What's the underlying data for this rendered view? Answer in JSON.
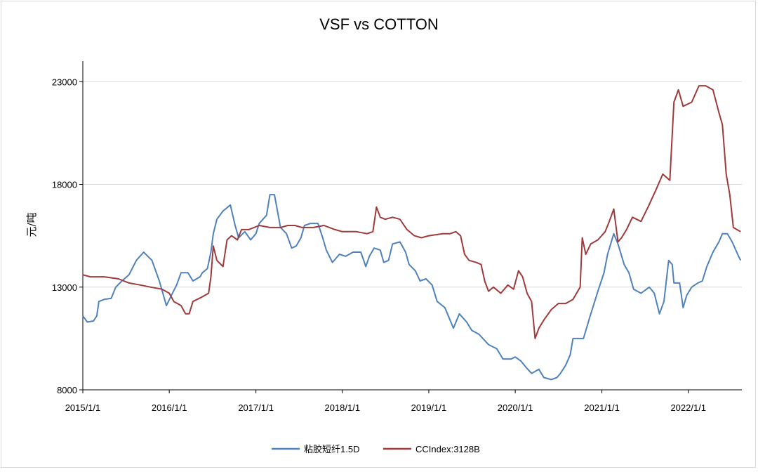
{
  "chart_data": {
    "type": "line",
    "title": "VSF vs COTTON",
    "xlabel": "",
    "ylabel": "元/吨",
    "xlim": [
      "2015-01-01",
      "2022-08-15"
    ],
    "ylim": [
      8000,
      24000
    ],
    "y_ticks": [
      8000,
      13000,
      18000,
      23000
    ],
    "x_tick_labels": [
      "2015/1/1",
      "2016/1/1",
      "2017/1/1",
      "2018/1/1",
      "2019/1/1",
      "2020/1/1",
      "2021/1/1",
      "2022/1/1"
    ],
    "grid": "horizontal",
    "legend_position": "bottom",
    "series": [
      {
        "name": "粘胶短纤1.5D",
        "color": "#4f81bd",
        "points": [
          [
            "2015-01-01",
            11600
          ],
          [
            "2015-01-20",
            11300
          ],
          [
            "2015-02-15",
            11350
          ],
          [
            "2015-03-01",
            11600
          ],
          [
            "2015-03-10",
            12300
          ],
          [
            "2015-04-01",
            12400
          ],
          [
            "2015-05-01",
            12450
          ],
          [
            "2015-05-20",
            13000
          ],
          [
            "2015-06-15",
            13300
          ],
          [
            "2015-07-15",
            13600
          ],
          [
            "2015-08-15",
            14300
          ],
          [
            "2015-09-15",
            14700
          ],
          [
            "2015-10-20",
            14300
          ],
          [
            "2015-11-20",
            13300
          ],
          [
            "2015-12-20",
            12100
          ],
          [
            "2016-01-10",
            12600
          ],
          [
            "2016-02-01",
            13100
          ],
          [
            "2016-02-20",
            13700
          ],
          [
            "2016-03-20",
            13700
          ],
          [
            "2016-04-10",
            13300
          ],
          [
            "2016-05-10",
            13500
          ],
          [
            "2016-05-20",
            13700
          ],
          [
            "2016-06-10",
            13900
          ],
          [
            "2016-06-25",
            14700
          ],
          [
            "2016-07-05",
            15600
          ],
          [
            "2016-07-20",
            16300
          ],
          [
            "2016-08-15",
            16700
          ],
          [
            "2016-09-15",
            17000
          ],
          [
            "2016-10-05",
            16000
          ],
          [
            "2016-10-20",
            15400
          ],
          [
            "2016-11-15",
            15700
          ],
          [
            "2016-12-10",
            15300
          ],
          [
            "2017-01-01",
            15600
          ],
          [
            "2017-01-15",
            16100
          ],
          [
            "2017-02-15",
            16500
          ],
          [
            "2017-03-01",
            17500
          ],
          [
            "2017-03-20",
            17500
          ],
          [
            "2017-04-15",
            15900
          ],
          [
            "2017-05-10",
            15600
          ],
          [
            "2017-06-01",
            14900
          ],
          [
            "2017-06-20",
            15000
          ],
          [
            "2017-07-10",
            15400
          ],
          [
            "2017-07-25",
            16000
          ],
          [
            "2017-08-20",
            16100
          ],
          [
            "2017-09-20",
            16100
          ],
          [
            "2017-10-10",
            15400
          ],
          [
            "2017-10-25",
            14800
          ],
          [
            "2017-11-20",
            14200
          ],
          [
            "2017-12-20",
            14600
          ],
          [
            "2018-01-15",
            14500
          ],
          [
            "2018-02-15",
            14700
          ],
          [
            "2018-03-20",
            14700
          ],
          [
            "2018-04-10",
            14000
          ],
          [
            "2018-04-25",
            14500
          ],
          [
            "2018-05-15",
            14900
          ],
          [
            "2018-06-10",
            14800
          ],
          [
            "2018-06-25",
            14200
          ],
          [
            "2018-07-15",
            14300
          ],
          [
            "2018-08-01",
            15100
          ],
          [
            "2018-09-01",
            15200
          ],
          [
            "2018-09-25",
            14700
          ],
          [
            "2018-10-10",
            14100
          ],
          [
            "2018-11-05",
            13800
          ],
          [
            "2018-11-25",
            13300
          ],
          [
            "2018-12-20",
            13400
          ],
          [
            "2019-01-15",
            13100
          ],
          [
            "2019-02-05",
            12300
          ],
          [
            "2019-03-10",
            12000
          ],
          [
            "2019-04-15",
            11000
          ],
          [
            "2019-05-10",
            11700
          ],
          [
            "2019-06-10",
            11300
          ],
          [
            "2019-07-01",
            10900
          ],
          [
            "2019-08-01",
            10700
          ],
          [
            "2019-09-10",
            10200
          ],
          [
            "2019-10-15",
            10000
          ],
          [
            "2019-11-10",
            9500
          ],
          [
            "2019-11-25",
            9500
          ],
          [
            "2019-12-15",
            9500
          ],
          [
            "2020-01-01",
            9600
          ],
          [
            "2020-01-25",
            9400
          ],
          [
            "2020-02-15",
            9100
          ],
          [
            "2020-03-10",
            8800
          ],
          [
            "2020-04-10",
            9000
          ],
          [
            "2020-05-01",
            8600
          ],
          [
            "2020-06-01",
            8500
          ],
          [
            "2020-06-25",
            8600
          ],
          [
            "2020-07-10",
            8800
          ],
          [
            "2020-08-01",
            9200
          ],
          [
            "2020-08-20",
            9700
          ],
          [
            "2020-09-01",
            10500
          ],
          [
            "2020-10-15",
            10500
          ],
          [
            "2020-11-10",
            11500
          ],
          [
            "2020-12-15",
            12800
          ],
          [
            "2021-01-10",
            13700
          ],
          [
            "2021-01-25",
            14600
          ],
          [
            "2021-02-20",
            15600
          ],
          [
            "2021-03-10",
            15100
          ],
          [
            "2021-04-05",
            14100
          ],
          [
            "2021-04-25",
            13700
          ],
          [
            "2021-05-15",
            12900
          ],
          [
            "2021-06-15",
            12700
          ],
          [
            "2021-07-20",
            13000
          ],
          [
            "2021-08-10",
            12700
          ],
          [
            "2021-09-01",
            11700
          ],
          [
            "2021-09-20",
            12300
          ],
          [
            "2021-10-10",
            14300
          ],
          [
            "2021-10-25",
            14100
          ],
          [
            "2021-11-01",
            13200
          ],
          [
            "2021-11-25",
            13200
          ],
          [
            "2021-12-10",
            12000
          ],
          [
            "2021-12-25",
            12600
          ],
          [
            "2022-01-15",
            13000
          ],
          [
            "2022-02-10",
            13200
          ],
          [
            "2022-03-01",
            13300
          ],
          [
            "2022-03-20",
            14000
          ],
          [
            "2022-04-15",
            14700
          ],
          [
            "2022-05-10",
            15200
          ],
          [
            "2022-05-25",
            15600
          ],
          [
            "2022-06-15",
            15600
          ],
          [
            "2022-07-05",
            15200
          ],
          [
            "2022-08-01",
            14500
          ],
          [
            "2022-08-10",
            14300
          ]
        ]
      },
      {
        "name": "CCIndex:3128B",
        "color": "#a03a3a",
        "points": [
          [
            "2015-01-01",
            13600
          ],
          [
            "2015-02-01",
            13500
          ],
          [
            "2015-04-01",
            13500
          ],
          [
            "2015-06-01",
            13400
          ],
          [
            "2015-07-15",
            13200
          ],
          [
            "2015-09-01",
            13100
          ],
          [
            "2015-10-15",
            13000
          ],
          [
            "2015-12-01",
            12900
          ],
          [
            "2016-01-01",
            12700
          ],
          [
            "2016-01-20",
            12300
          ],
          [
            "2016-02-20",
            12100
          ],
          [
            "2016-03-10",
            11700
          ],
          [
            "2016-03-25",
            11700
          ],
          [
            "2016-04-10",
            12300
          ],
          [
            "2016-05-15",
            12500
          ],
          [
            "2016-06-15",
            12700
          ],
          [
            "2016-06-25",
            13500
          ],
          [
            "2016-07-05",
            15000
          ],
          [
            "2016-07-20",
            14300
          ],
          [
            "2016-08-15",
            14000
          ],
          [
            "2016-09-01",
            15300
          ],
          [
            "2016-09-20",
            15500
          ],
          [
            "2016-10-15",
            15300
          ],
          [
            "2016-11-01",
            15800
          ],
          [
            "2016-12-01",
            15800
          ],
          [
            "2017-01-15",
            16000
          ],
          [
            "2017-03-01",
            15900
          ],
          [
            "2017-04-15",
            15900
          ],
          [
            "2017-05-15",
            16000
          ],
          [
            "2017-06-15",
            16000
          ],
          [
            "2017-07-15",
            15900
          ],
          [
            "2017-09-01",
            15900
          ],
          [
            "2017-10-15",
            16000
          ],
          [
            "2017-12-01",
            15800
          ],
          [
            "2018-01-01",
            15700
          ],
          [
            "2018-03-01",
            15700
          ],
          [
            "2018-04-15",
            15600
          ],
          [
            "2018-05-10",
            15700
          ],
          [
            "2018-05-25",
            16900
          ],
          [
            "2018-06-10",
            16400
          ],
          [
            "2018-07-01",
            16300
          ],
          [
            "2018-08-01",
            16400
          ],
          [
            "2018-09-01",
            16300
          ],
          [
            "2018-10-01",
            15800
          ],
          [
            "2018-11-01",
            15500
          ],
          [
            "2018-12-01",
            15400
          ],
          [
            "2019-01-01",
            15500
          ],
          [
            "2019-03-01",
            15600
          ],
          [
            "2019-04-01",
            15600
          ],
          [
            "2019-04-25",
            15700
          ],
          [
            "2019-05-15",
            15500
          ],
          [
            "2019-06-01",
            14600
          ],
          [
            "2019-06-20",
            14300
          ],
          [
            "2019-07-20",
            14200
          ],
          [
            "2019-08-10",
            14100
          ],
          [
            "2019-08-25",
            13300
          ],
          [
            "2019-09-10",
            12800
          ],
          [
            "2019-10-01",
            13000
          ],
          [
            "2019-11-01",
            12700
          ],
          [
            "2019-12-01",
            13100
          ],
          [
            "2019-12-25",
            12900
          ],
          [
            "2020-01-15",
            13800
          ],
          [
            "2020-02-01",
            13500
          ],
          [
            "2020-02-20",
            12700
          ],
          [
            "2020-03-10",
            12300
          ],
          [
            "2020-03-25",
            10500
          ],
          [
            "2020-04-10",
            11000
          ],
          [
            "2020-05-01",
            11400
          ],
          [
            "2020-06-01",
            11900
          ],
          [
            "2020-07-01",
            12200
          ],
          [
            "2020-08-01",
            12200
          ],
          [
            "2020-09-01",
            12400
          ],
          [
            "2020-10-01",
            13000
          ],
          [
            "2020-10-10",
            15400
          ],
          [
            "2020-10-25",
            14600
          ],
          [
            "2020-11-15",
            15100
          ],
          [
            "2020-12-15",
            15300
          ],
          [
            "2021-01-15",
            15700
          ],
          [
            "2021-02-01",
            16200
          ],
          [
            "2021-02-20",
            16800
          ],
          [
            "2021-03-10",
            15200
          ],
          [
            "2021-03-25",
            15400
          ],
          [
            "2021-04-15",
            15800
          ],
          [
            "2021-05-10",
            16400
          ],
          [
            "2021-06-15",
            16200
          ],
          [
            "2021-07-15",
            16900
          ],
          [
            "2021-08-20",
            17800
          ],
          [
            "2021-09-15",
            18500
          ],
          [
            "2021-10-15",
            18200
          ],
          [
            "2021-11-01",
            22000
          ],
          [
            "2021-11-20",
            22600
          ],
          [
            "2021-12-10",
            21800
          ],
          [
            "2022-01-15",
            22000
          ],
          [
            "2022-02-15",
            22800
          ],
          [
            "2022-03-15",
            22800
          ],
          [
            "2022-04-15",
            22600
          ],
          [
            "2022-05-10",
            21500
          ],
          [
            "2022-05-25",
            20900
          ],
          [
            "2022-06-10",
            18500
          ],
          [
            "2022-06-25",
            17500
          ],
          [
            "2022-07-10",
            15900
          ],
          [
            "2022-07-25",
            15800
          ],
          [
            "2022-08-10",
            15700
          ]
        ]
      }
    ]
  }
}
